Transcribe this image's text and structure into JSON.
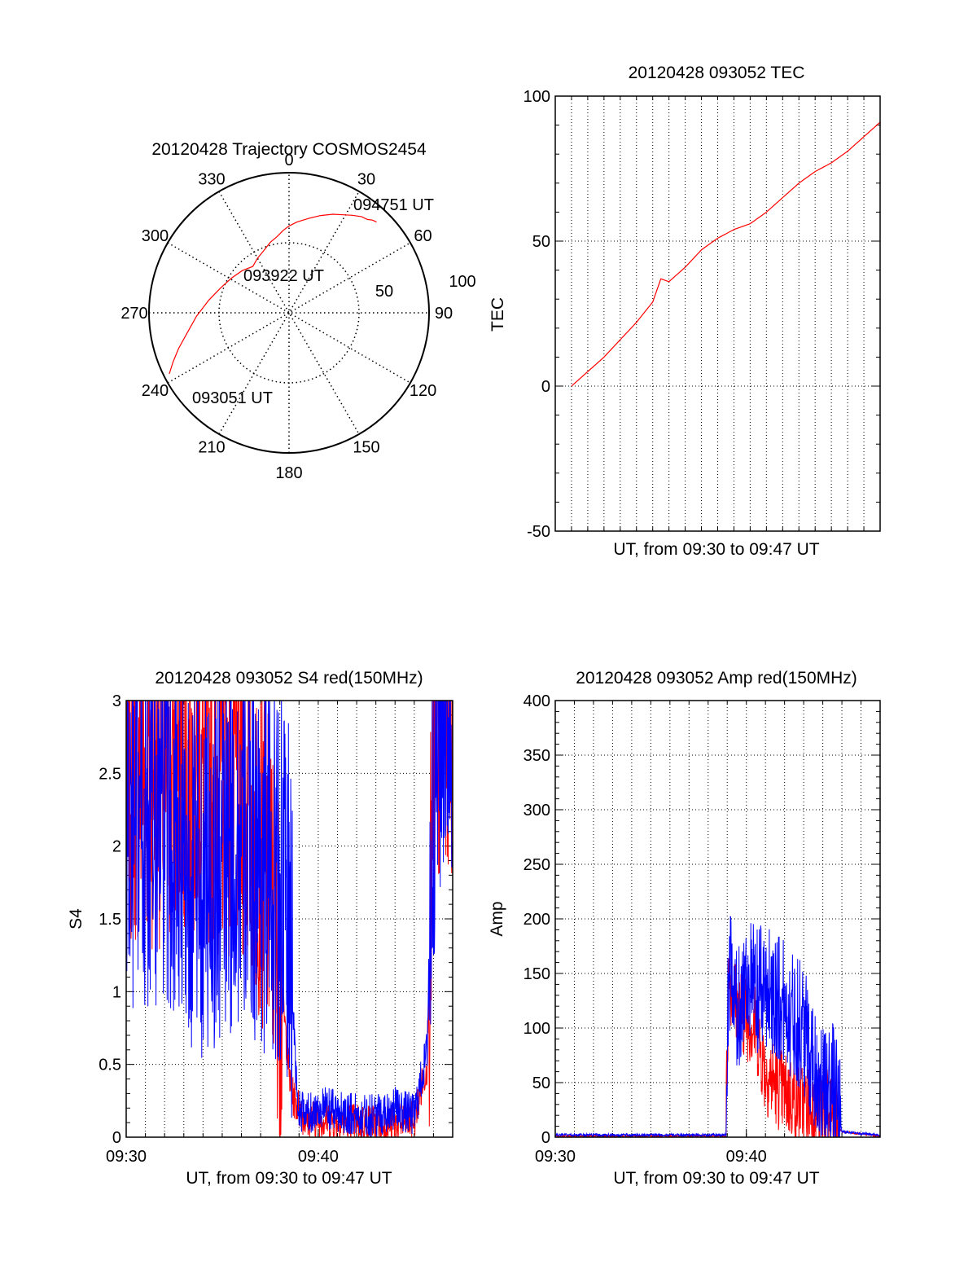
{
  "colors": {
    "red": "#ff0000",
    "blue": "#0000ff",
    "axis": "#000000"
  },
  "chart_data": [
    {
      "type": "polar",
      "title": "20120428 Trajectory COSMOS2454",
      "azimuth_labels": [
        "0",
        "30",
        "60",
        "90",
        "120",
        "150",
        "180",
        "210",
        "240",
        "270",
        "300",
        "330"
      ],
      "radial_labels": [
        "50",
        "100"
      ],
      "rlim": [
        0,
        100
      ],
      "series": [
        {
          "color": "red",
          "points": [
            [
              243,
              96
            ],
            [
              247,
              90
            ],
            [
              252,
              83
            ],
            [
              259,
              74
            ],
            [
              268,
              66
            ],
            [
              279,
              58
            ],
            [
              290,
              52
            ],
            [
              301,
              48
            ],
            [
              312,
              45
            ],
            [
              322,
              42
            ],
            [
              330,
              45
            ],
            [
              338,
              48
            ],
            [
              345,
              52
            ],
            [
              351,
              55
            ],
            [
              356,
              59
            ],
            [
              0,
              62
            ],
            [
              5,
              65
            ],
            [
              12,
              69
            ],
            [
              18,
              73
            ],
            [
              24,
              77
            ],
            [
              29,
              80
            ],
            [
              33,
              83
            ],
            [
              37,
              86
            ],
            [
              40,
              87
            ],
            [
              42,
              89
            ],
            [
              44,
              90
            ]
          ]
        }
      ],
      "annotations": [
        {
          "text": "094751 UT",
          "az": 40,
          "r": 91
        },
        {
          "text": "093922 UT",
          "az": 330,
          "r": 40
        },
        {
          "text": "093051 UT",
          "az": 228,
          "r": 92
        }
      ]
    },
    {
      "type": "line",
      "title": "20120428 093052 TEC",
      "xlabel": "UT, from 09:30 to 09:47 UT",
      "ylabel": "TEC",
      "xlim": [
        "09:29",
        "09:49"
      ],
      "ylim": [
        -50,
        100
      ],
      "yticks": [
        -50,
        0,
        50,
        100
      ],
      "grid": true,
      "series": [
        {
          "color": "red",
          "x": [
            "09:30",
            "09:31",
            "09:32",
            "09:33",
            "09:34",
            "09:35",
            "09:35:30",
            "09:36",
            "09:37",
            "09:38",
            "09:39",
            "09:40",
            "09:41",
            "09:42",
            "09:43",
            "09:44",
            "09:45",
            "09:46",
            "09:47",
            "09:48",
            "09:49"
          ],
          "y": [
            0,
            5,
            10,
            16,
            22,
            29,
            37,
            36,
            41,
            47,
            51,
            54,
            56,
            60,
            65,
            70,
            74,
            77,
            81,
            86,
            91
          ]
        }
      ]
    },
    {
      "type": "line",
      "title": "20120428 093052 S4 red(150MHz)",
      "xlabel": "UT, from 09:30 to 09:47 UT",
      "ylabel": "S4",
      "xlim": [
        "09:30",
        "09:47"
      ],
      "ylim": [
        0,
        3
      ],
      "xticks": [
        "09:30",
        "09:40"
      ],
      "yticks": [
        "0",
        "0.5",
        "1",
        "1.5",
        "2",
        "2.5",
        "3"
      ],
      "grid": true,
      "series": [
        {
          "color": "red",
          "segments": [
            {
              "x": [
                "09:30",
                "09:33",
                "09:36",
                "09:37",
                "09:37:45",
                "09:38:15",
                "09:38:35",
                "09:39:20",
                "09:40",
                "09:42",
                "09:44",
                "09:45",
                "09:45:40",
                "09:46",
                "09:46:30",
                "09:47"
              ],
              "y": [
                2.5,
                2.5,
                2.4,
                2.0,
                1.5,
                0.8,
                0.3,
                0.12,
                0.13,
                0.1,
                0.09,
                0.12,
                0.5,
                2.5,
                3.0,
                3.0
              ],
              "jitter": 0.55
            }
          ]
        },
        {
          "color": "blue",
          "segments": [
            {
              "x": [
                "09:30",
                "09:32",
                "09:34",
                "09:36",
                "09:38",
                "09:38:30",
                "09:38:55",
                "09:39:25",
                "09:40",
                "09:41",
                "09:42",
                "09:43",
                "09:44",
                "09:45",
                "09:45:40",
                "09:46",
                "09:46:30",
                "09:47"
              ],
              "y": [
                2.0,
                2.2,
                1.8,
                2.0,
                1.8,
                1.5,
                0.2,
                0.15,
                0.2,
                0.18,
                0.15,
                0.15,
                0.2,
                0.15,
                0.6,
                2.5,
                3.0,
                3.0
              ],
              "jitter": 0.6
            }
          ]
        }
      ]
    },
    {
      "type": "line",
      "title": "20120428 093052 Amp red(150MHz)",
      "xlabel": "UT, from 09:30 to 09:47 UT",
      "ylabel": "Amp",
      "xlim": [
        "09:30",
        "09:47"
      ],
      "ylim": [
        0,
        400
      ],
      "xticks": [
        "09:30",
        "09:40"
      ],
      "yticks": [
        "0",
        "50",
        "100",
        "150",
        "200",
        "250",
        "300",
        "350",
        "400"
      ],
      "grid": true,
      "series": [
        {
          "color": "red",
          "x": [
            "09:30",
            "09:38",
            "09:38:55",
            "09:39:05",
            "09:39:30",
            "09:40",
            "09:40:30",
            "09:41",
            "09:42",
            "09:43",
            "09:44",
            "09:44:30",
            "09:45",
            "09:47"
          ],
          "y": [
            1,
            1,
            1,
            150,
            120,
            110,
            100,
            60,
            40,
            30,
            25,
            20,
            5,
            1
          ],
          "jitter": 40
        },
        {
          "color": "blue",
          "x": [
            "09:30",
            "09:38",
            "09:38:55",
            "09:39:05",
            "09:39:30",
            "09:40",
            "09:40:30",
            "09:41",
            "09:42",
            "09:43",
            "09:44",
            "09:44:30",
            "09:45",
            "09:47"
          ],
          "y": [
            2,
            2,
            2,
            160,
            110,
            150,
            130,
            140,
            120,
            100,
            40,
            50,
            5,
            2
          ],
          "jitter": 60
        }
      ]
    }
  ]
}
